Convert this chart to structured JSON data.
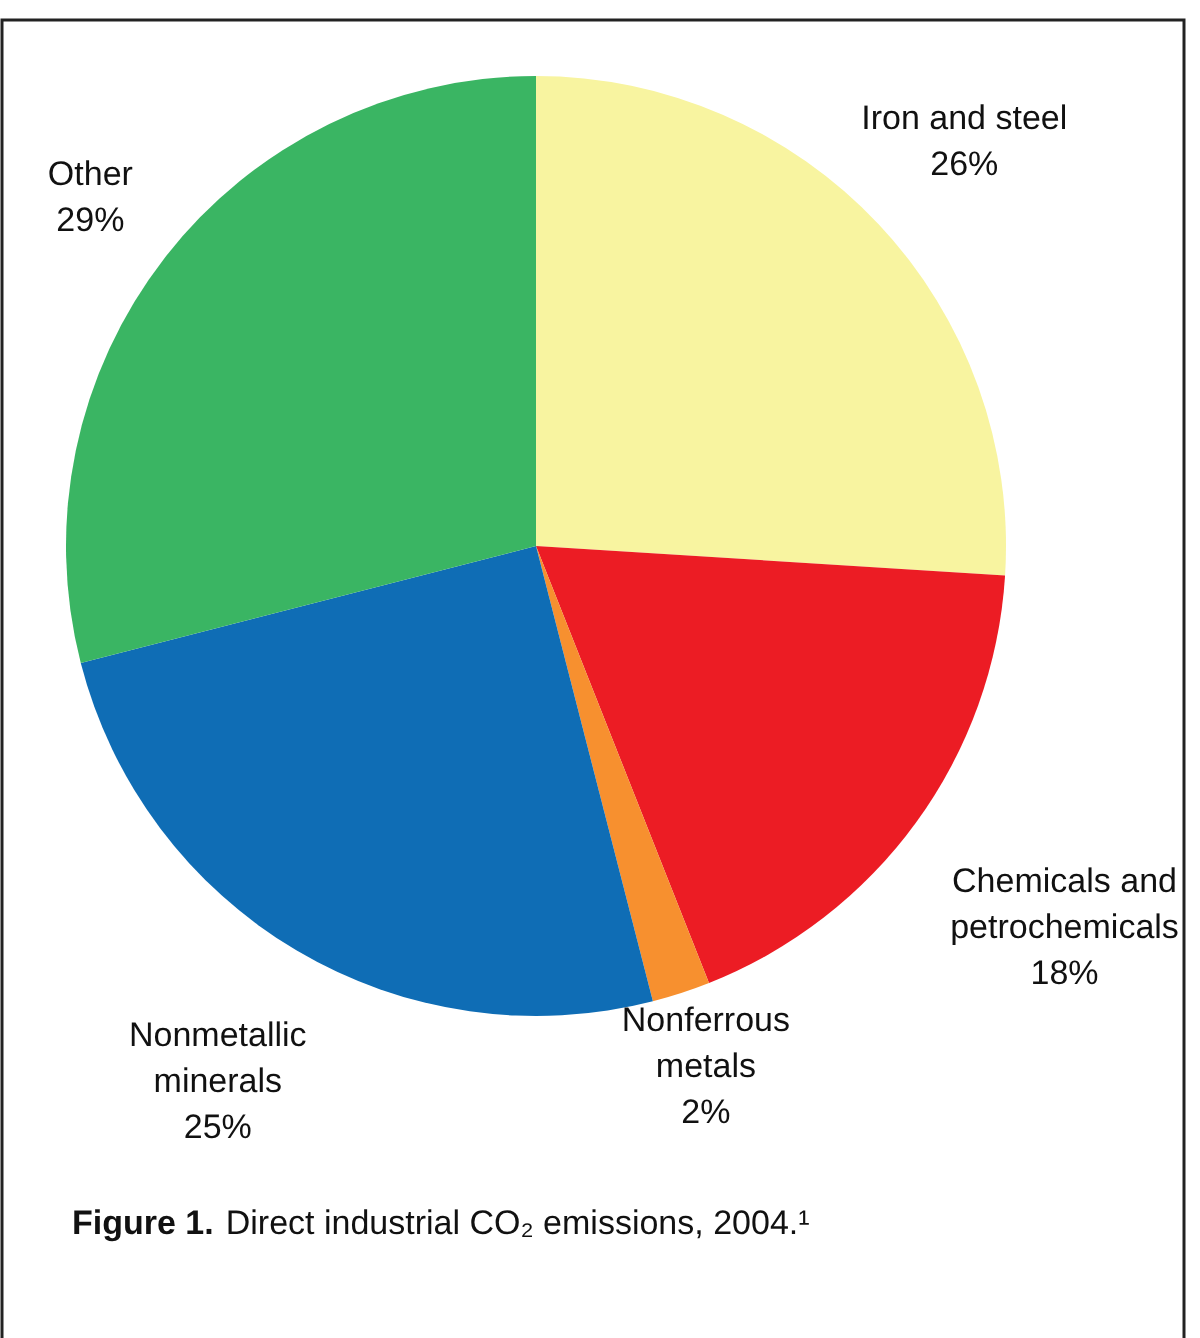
{
  "chart_data": {
    "type": "pie",
    "title": "Figure 1.",
    "subtitle": "Direct industrial CO₂ emissions, 2004.¹",
    "categories": [
      "Iron and steel",
      "Chemicals and\npetrochemicals",
      "Nonferrous\nmetals",
      "Nonmetallic\nminerals",
      "Other"
    ],
    "values": [
      26,
      18,
      2,
      25,
      29
    ],
    "value_labels": [
      "26%",
      "18%",
      "2%",
      "25%",
      "29%"
    ],
    "colors": [
      "#f8f4a0",
      "#ec1c24",
      "#f7902f",
      "#0f6db5",
      "#3ab563"
    ]
  }
}
